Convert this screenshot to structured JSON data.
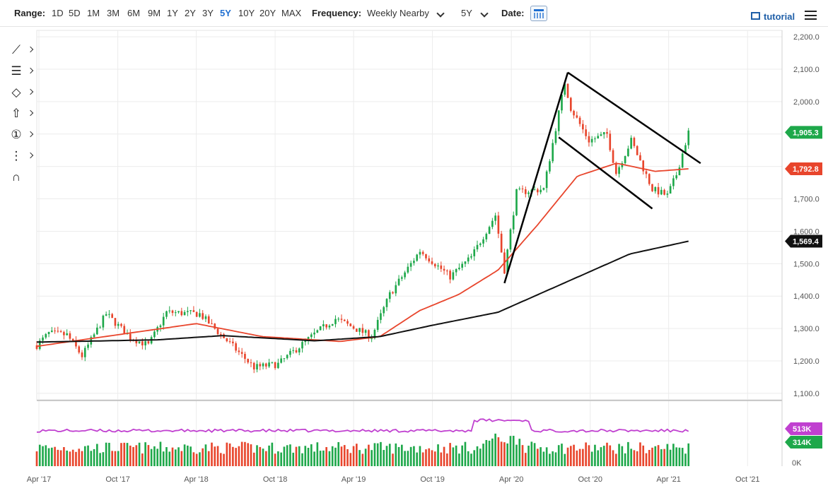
{
  "toolbar": {
    "range_label": "Range:",
    "ranges": [
      "1D",
      "5D",
      "1M",
      "3M",
      "6M",
      "9M",
      "1Y",
      "2Y",
      "3Y",
      "5Y",
      "10Y",
      "20Y",
      "MAX"
    ],
    "active_range": "5Y",
    "frequency_label": "Frequency:",
    "frequency_value": "Weekly Nearby",
    "period_value": "5Y",
    "date_label": "Date:",
    "tutorial_label": "tutorial"
  },
  "tools": [
    "line-tool-icon",
    "fib-tool-icon",
    "shape-tool-icon",
    "arrow-up-icon",
    "numbered-marker-icon",
    "measure-tool-icon",
    "magnet-icon"
  ],
  "colors": {
    "up": "#1ea84a",
    "down": "#e8452c",
    "ma_short": "#e8452c",
    "ma_long": "#111111",
    "volume_line": "#c040d0",
    "accent": "#1f6fd1"
  },
  "chart_data": {
    "type": "candlestick",
    "frequency": "weekly",
    "x_ticks": [
      "Apr '17",
      "Oct '17",
      "Apr '18",
      "Oct '18",
      "Apr '19",
      "Oct '19",
      "Apr '20",
      "Oct '20",
      "Apr '21",
      "Oct '21"
    ],
    "x_tick_dates": [
      "2017-04-01",
      "2017-10-01",
      "2018-04-01",
      "2018-10-01",
      "2019-04-01",
      "2019-10-01",
      "2020-04-01",
      "2020-10-01",
      "2021-04-01",
      "2021-10-01"
    ],
    "x_range": [
      "2017-03-27",
      "2021-12-20"
    ],
    "y_ticks": [
      "2,200.0",
      "2,100.0",
      "2,000.0",
      "1,900.0",
      "1,800.0",
      "1,700.0",
      "1,600.0",
      "1,500.0",
      "1,400.0",
      "1,300.0",
      "1,200.0",
      "1,100.0"
    ],
    "ylim": [
      1080,
      2220
    ],
    "grid": true,
    "price_anchors": [
      [
        "2017-03-27",
        1248
      ],
      [
        "2017-04-24",
        1285
      ],
      [
        "2017-06-05",
        1280
      ],
      [
        "2017-07-10",
        1215
      ],
      [
        "2017-09-04",
        1345
      ],
      [
        "2017-10-30",
        1272
      ],
      [
        "2017-12-11",
        1248
      ],
      [
        "2018-01-22",
        1350
      ],
      [
        "2018-04-09",
        1345
      ],
      [
        "2018-05-21",
        1290
      ],
      [
        "2018-08-13",
        1180
      ],
      [
        "2018-10-08",
        1190
      ],
      [
        "2019-01-07",
        1290
      ],
      [
        "2019-02-18",
        1330
      ],
      [
        "2019-05-13",
        1275
      ],
      [
        "2019-06-24",
        1405
      ],
      [
        "2019-09-02",
        1540
      ],
      [
        "2019-11-11",
        1460
      ],
      [
        "2019-12-30",
        1520
      ],
      [
        "2020-02-24",
        1650
      ],
      [
        "2020-03-16",
        1480
      ],
      [
        "2020-04-13",
        1720
      ],
      [
        "2020-06-15",
        1730
      ],
      [
        "2020-08-03",
        2060
      ],
      [
        "2020-08-17",
        1980
      ],
      [
        "2020-09-28",
        1880
      ],
      [
        "2020-11-09",
        1900
      ],
      [
        "2020-11-30",
        1780
      ],
      [
        "2021-01-04",
        1880
      ],
      [
        "2021-02-22",
        1730
      ],
      [
        "2021-03-29",
        1710
      ],
      [
        "2021-04-19",
        1775
      ],
      [
        "2021-05-17",
        1905
      ]
    ],
    "last_close": "1,905.3",
    "ma_short_last": "1,792.8",
    "ma_long_last": "1,569.4",
    "ma_short_anchors": [
      [
        "2017-03-27",
        1245
      ],
      [
        "2017-09-01",
        1275
      ],
      [
        "2018-04-01",
        1315
      ],
      [
        "2018-09-01",
        1275
      ],
      [
        "2019-03-01",
        1260
      ],
      [
        "2019-06-01",
        1275
      ],
      [
        "2019-09-01",
        1355
      ],
      [
        "2019-12-01",
        1405
      ],
      [
        "2020-03-01",
        1480
      ],
      [
        "2020-06-01",
        1620
      ],
      [
        "2020-09-01",
        1770
      ],
      [
        "2020-12-01",
        1810
      ],
      [
        "2021-03-01",
        1785
      ],
      [
        "2021-05-17",
        1792.8
      ]
    ],
    "ma_long_anchors": [
      [
        "2017-03-27",
        1258
      ],
      [
        "2018-01-01",
        1265
      ],
      [
        "2018-06-01",
        1278
      ],
      [
        "2019-01-01",
        1262
      ],
      [
        "2019-06-01",
        1275
      ],
      [
        "2019-10-01",
        1310
      ],
      [
        "2020-03-01",
        1350
      ],
      [
        "2020-08-01",
        1440
      ],
      [
        "2021-01-01",
        1530
      ],
      [
        "2021-05-17",
        1569.4
      ]
    ],
    "trendlines": [
      {
        "from": [
          "2020-03-16",
          1440
        ],
        "to": [
          "2020-08-10",
          2090
        ]
      },
      {
        "from": [
          "2020-08-10",
          2090
        ],
        "to": [
          "2021-06-14",
          1810
        ]
      },
      {
        "from": [
          "2020-07-20",
          1890
        ],
        "to": [
          "2021-02-22",
          1670
        ]
      }
    ],
    "volume": {
      "y_ticks": [
        "513K",
        "314K",
        "0K"
      ],
      "avg_last": "513K",
      "last_value": "314K"
    }
  }
}
